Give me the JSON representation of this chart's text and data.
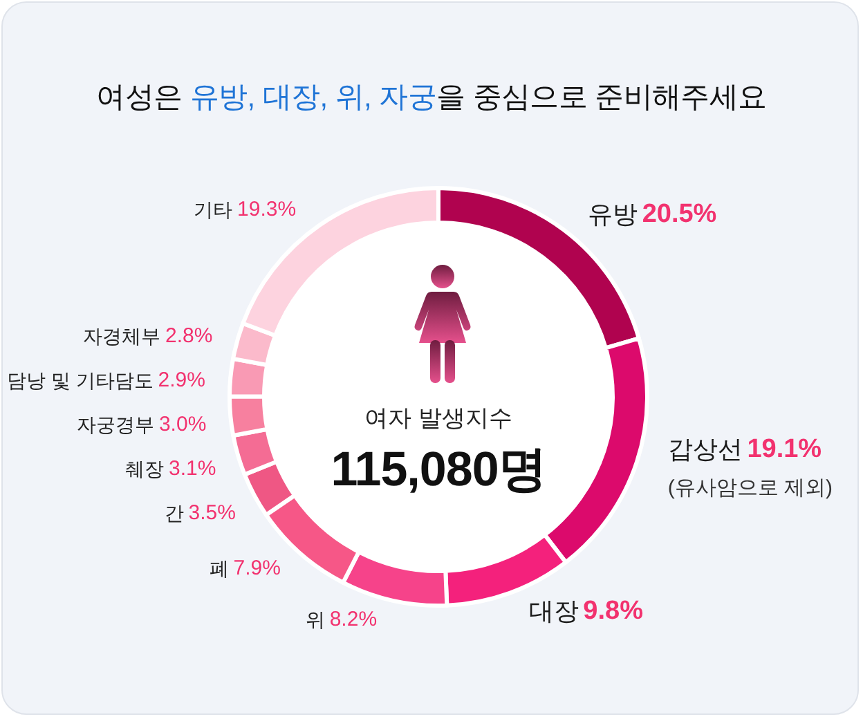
{
  "chart_data": {
    "type": "donut",
    "title": "여성은 유방, 대장, 위, 자궁을 중심으로 준비해주세요",
    "categories": [
      "유방",
      "갑상선",
      "대장",
      "위",
      "폐",
      "간",
      "췌장",
      "자궁경부",
      "담낭 및 기타담도",
      "자경체부",
      "기타"
    ],
    "values": [
      20.5,
      19.1,
      9.8,
      8.2,
      7.9,
      3.5,
      3.1,
      3.0,
      2.9,
      2.8,
      19.3
    ],
    "colors": [
      "#b0034f",
      "#dc0a6c",
      "#f4217c",
      "#f6438a",
      "#f65787",
      "#ef5784",
      "#f46c94",
      "#f7809f",
      "#f99ab4",
      "#fbbacb",
      "#fdd3df"
    ],
    "value_labels": [
      "20.5%",
      "19.1%",
      "9.8%",
      "8.2%",
      "7.9%",
      "3.5%",
      "3.1%",
      "3.0%",
      "2.9%",
      "2.8%",
      "19.3%"
    ],
    "annotations": [
      "여자 발생지수",
      "115,080명",
      {
        "text": "(유사암으로 제외)",
        "x": "갑상선"
      }
    ]
  }
}
